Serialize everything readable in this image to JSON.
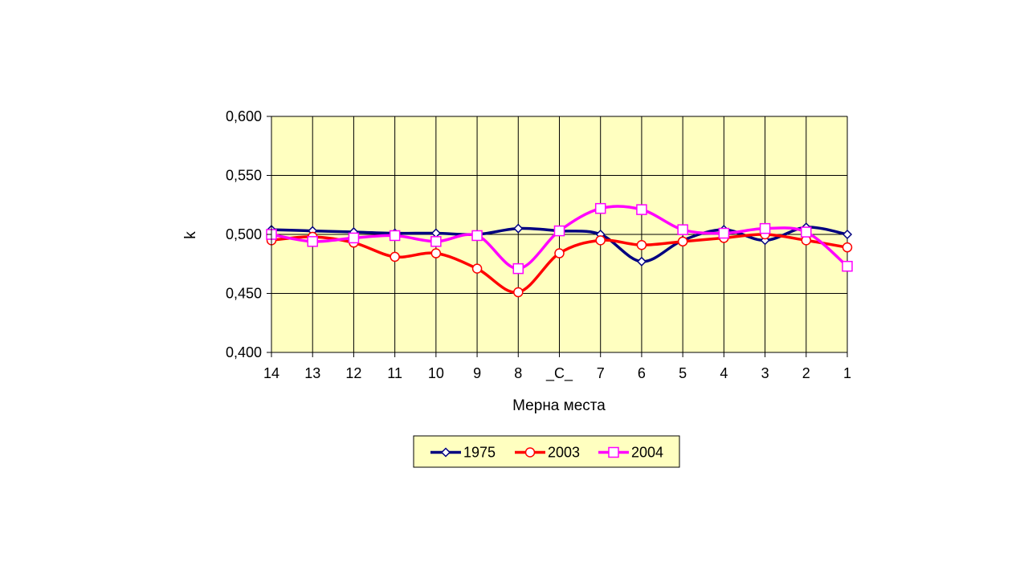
{
  "chart_data": {
    "type": "line",
    "title": "",
    "xlabel": "Мерна места",
    "ylabel": "k",
    "categories": [
      "14",
      "13",
      "12",
      "11",
      "10",
      "9",
      "8",
      "_C_",
      "7",
      "6",
      "5",
      "4",
      "3",
      "2",
      "1"
    ],
    "ylim": [
      0.4,
      0.6
    ],
    "yticks": [
      0.4,
      0.45,
      0.5,
      0.55,
      0.6
    ],
    "ytick_labels": [
      "0,400",
      "0,450",
      "0,500",
      "0,550",
      "0,600"
    ],
    "grid": true,
    "plot_background": "#ffffc0",
    "legend_position": "bottom",
    "series": [
      {
        "name": "1975",
        "color": "#000080",
        "marker": "diamond",
        "values": [
          0.504,
          0.503,
          0.502,
          0.501,
          0.501,
          0.5,
          0.505,
          0.503,
          0.5,
          0.477,
          0.495,
          0.504,
          0.495,
          0.506,
          0.5
        ]
      },
      {
        "name": "2003",
        "color": "#ff0000",
        "marker": "circle",
        "values": [
          0.495,
          0.498,
          0.493,
          0.481,
          0.484,
          0.471,
          0.451,
          0.484,
          0.495,
          0.491,
          0.494,
          0.497,
          0.5,
          0.495,
          0.489
        ]
      },
      {
        "name": "2004",
        "color": "#ff00ff",
        "marker": "square",
        "values": [
          0.5,
          0.494,
          0.497,
          0.499,
          0.494,
          0.499,
          0.471,
          0.503,
          0.522,
          0.521,
          0.504,
          0.501,
          0.505,
          0.502,
          0.473
        ]
      }
    ]
  }
}
